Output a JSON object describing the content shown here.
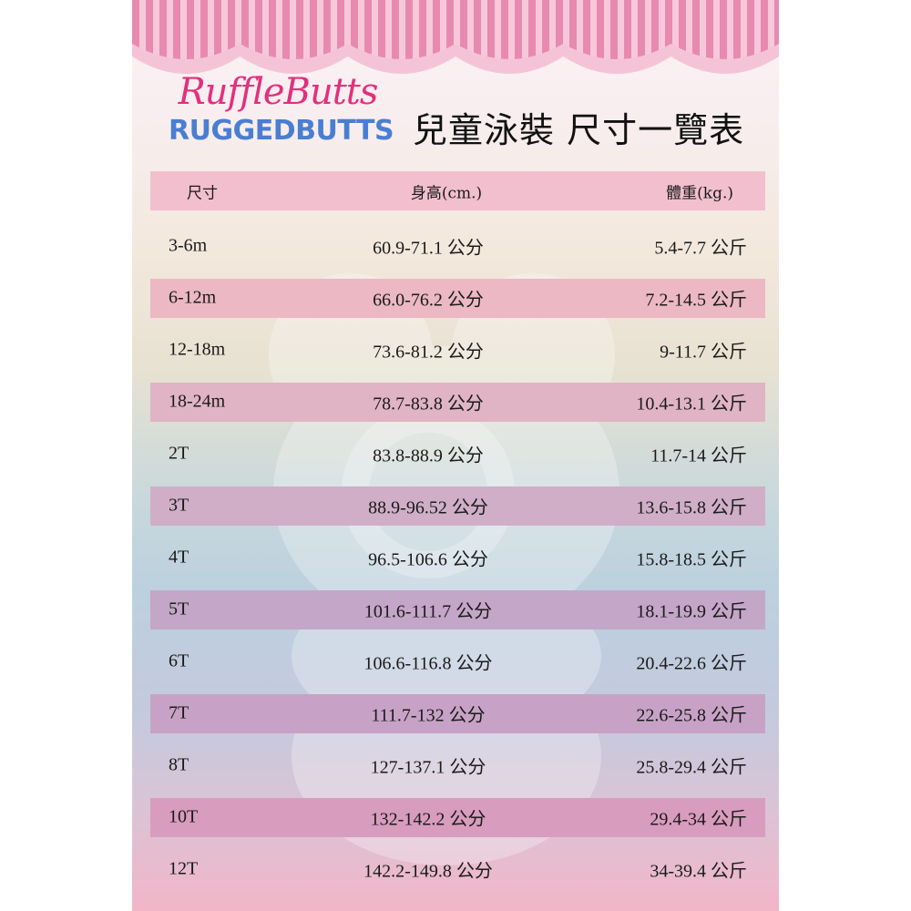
{
  "logo": {
    "ruffle": "RuffleButts",
    "rugged": "RUGGEDBUTTS"
  },
  "title": "兒童泳裝 尺寸一覽表",
  "headers": {
    "size": "尺寸",
    "height": "身高(cm.)",
    "weight": "體重(kg.)"
  },
  "colors": {
    "header_band": "#f2bfcf",
    "stripe": "#e88ab0",
    "stripe_bg": "#f6c8da",
    "logo_pink": "#e2307c",
    "logo_blue": "#4a7ed2"
  },
  "rows": [
    {
      "size": "3-6m",
      "height": "60.9-71.1 公分",
      "weight": "5.4-7.7 公斤",
      "band": null
    },
    {
      "size": "6-12m",
      "height": "66.0-76.2 公分",
      "weight": "7.2-14.5 公斤",
      "band": "#ebb8c4"
    },
    {
      "size": "12-18m",
      "height": "73.6-81.2 公分",
      "weight": "9-11.7 公斤",
      "band": null
    },
    {
      "size": "18-24m",
      "height": "78.7-83.8 公分",
      "weight": "10.4-13.1 公斤",
      "band": "#e0b4c4"
    },
    {
      "size": "2T",
      "height": "83.8-88.9 公分",
      "weight": "11.7-14 公斤",
      "band": null
    },
    {
      "size": "3T",
      "height": "88.9-96.52 公分",
      "weight": "13.6-15.8 公斤",
      "band": "#d0aec8"
    },
    {
      "size": "4T",
      "height": "96.5-106.6 公分",
      "weight": "15.8-18.5 公斤",
      "band": null
    },
    {
      "size": "5T",
      "height": "101.6-111.7 公分",
      "weight": "18.1-19.9 公斤",
      "band": "#c4a6c8"
    },
    {
      "size": "6T",
      "height": "106.6-116.8 公分",
      "weight": "20.4-22.6 公斤",
      "band": null
    },
    {
      "size": "7T",
      "height": "111.7-132 公分",
      "weight": "22.6-25.8 公斤",
      "band": "#c8a2c6"
    },
    {
      "size": "8T",
      "height": "127-137.1 公分",
      "weight": "25.8-29.4 公斤",
      "band": null
    },
    {
      "size": "10T",
      "height": "132-142.2 公分",
      "weight": "29.4-34 公斤",
      "band": "#d89cbe"
    },
    {
      "size": "12T",
      "height": "142.2-149.8 公分",
      "weight": "34-39.4 公斤",
      "band": null
    }
  ]
}
